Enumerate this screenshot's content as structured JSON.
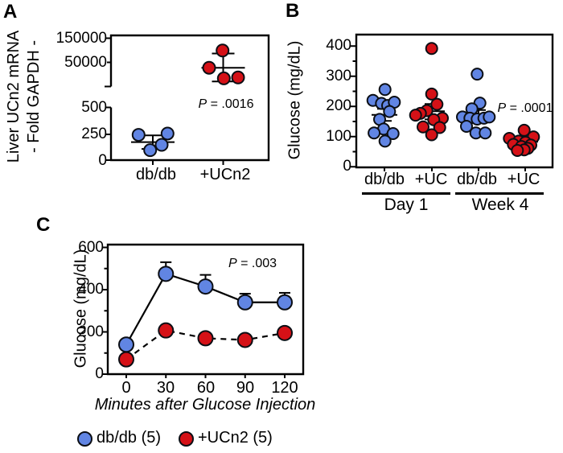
{
  "colors": {
    "blue": "#6185e3",
    "red": "#d51117",
    "stroke": "#0b0e14",
    "line": "#000000"
  },
  "panels": {
    "a": {
      "label": "A",
      "y_title_line1": "Liver UCn2 mRNA",
      "y_title_line2": "- Fold GAPDH -",
      "y_ticks": [
        "150000",
        "50000",
        "500",
        "250",
        "0"
      ],
      "x_labels": [
        "db/db",
        "+UCn2"
      ],
      "p_value": "P = .0016"
    },
    "b": {
      "label": "B",
      "y_title": "Glucose (mg/dL)",
      "y_ticks": [
        "400",
        "300",
        "200",
        "100",
        "0"
      ],
      "x_labels": [
        "db/db",
        "+UC",
        "db/db",
        "+UC"
      ],
      "group_labels": [
        "Day 1",
        "Week 4"
      ],
      "p_value": "P = .0001"
    },
    "c": {
      "label": "C",
      "y_title": "Glucose (mg/dL)",
      "y_ticks": [
        "600",
        "400",
        "200",
        "0"
      ],
      "x_ticks": [
        "0",
        "30",
        "60",
        "90",
        "120"
      ],
      "x_title": "Minutes after Glucose Injection",
      "p_value": "P = .003",
      "legend": [
        {
          "label": "db/db (5)",
          "color": "blue"
        },
        {
          "label": "+UCn2 (5)",
          "color": "red"
        }
      ]
    }
  },
  "chart_data": [
    {
      "panel": "A",
      "type": "scatter",
      "ylabel": "Liver UCn2 mRNA - Fold GAPDH -",
      "axis_note": "broken y-axis: linear 0-500 (ticks 0,250,500), upper segment ~16000-160000 (ticks 50000,150000)",
      "p_value": "P = .0016",
      "groups": [
        {
          "name": "db/db",
          "color": "blue",
          "scale": "lower",
          "values": [
            245,
            257,
            102,
            152
          ],
          "dx": [
            -17.7,
            18.3,
            -3.3,
            11
          ],
          "mean": 177,
          "sem_upper": 240,
          "sem_lower": 114
        },
        {
          "name": "+UCn2",
          "color": "red",
          "scale": "upper",
          "values": [
            80000,
            37000,
            23000,
            24000
          ],
          "dx": [
            -0.8,
            -17.5,
            0.8,
            18.5
          ],
          "mean": 37000,
          "sem_upper": 70000,
          "sem_lower": 20000
        }
      ]
    },
    {
      "panel": "B",
      "type": "scatter",
      "ylabel": "Glucose (mg/dL)",
      "ylim": [
        0,
        400
      ],
      "yticks": [
        0,
        100,
        200,
        300,
        400
      ],
      "p_value": "P = .0001",
      "groups": [
        {
          "name": "db/db Day 1",
          "color": "blue",
          "values": [
            256,
            220,
            210,
            203,
            214,
            183,
            157,
            125,
            112,
            110,
            85
          ],
          "dx": [
            0.7,
            -14.3,
            -3.7,
            4,
            12.3,
            6.3,
            -6,
            -1,
            -12.9,
            10.7,
            0.7
          ],
          "mean": 172,
          "sem_upper": 192,
          "sem_lower": 152
        },
        {
          "name": "+UC Day 1",
          "color": "red",
          "values": [
            392,
            241,
            207,
            186,
            177,
            171,
            161,
            156,
            132,
            130,
            106
          ],
          "dx": [
            -0.3,
            -0.3,
            6.3,
            -6.3,
            -14.3,
            -20.3,
            13,
            2.3,
            -11,
            9.7,
            -0.3
          ],
          "mean": 184,
          "sem_upper": 208,
          "sem_lower": 157
        },
        {
          "name": "db/db Week 4",
          "color": "blue",
          "values": [
            307,
            211,
            192,
            165,
            161,
            158,
            161,
            165,
            134,
            112,
            112
          ],
          "dx": [
            -1.7,
            1.7,
            -8.3,
            -20,
            -10.7,
            -1.7,
            6.7,
            13.3,
            -15,
            -3.3,
            8.3
          ],
          "mean": 168,
          "sem_upper": 188,
          "sem_lower": 150
        },
        {
          "name": "+UC Week 4",
          "color": "red",
          "values": [
            121,
            99,
            94,
            85,
            81,
            74,
            72,
            67,
            61,
            56,
            54
          ],
          "dx": [
            -1.3,
            10.3,
            -19.7,
            -8,
            0.3,
            -14.7,
            7,
            -4.7,
            3.3,
            -1.3,
            -9.7
          ],
          "mean": 83,
          "sem_upper": 91,
          "sem_lower": 75
        }
      ]
    },
    {
      "panel": "C",
      "type": "line",
      "xlabel": "Minutes after Glucose Injection",
      "ylabel": "Glucose (mg/dL)",
      "x": [
        0,
        30,
        60,
        90,
        120
      ],
      "ylim": [
        0,
        600
      ],
      "yticks": [
        0,
        200,
        400,
        600
      ],
      "p_value": "P = .003",
      "series": [
        {
          "name": "db/db (5)",
          "color": "blue",
          "style": "solid",
          "values": [
            140,
            475,
            415,
            340,
            340
          ],
          "err_upper": [
            null,
            530,
            470,
            381,
            385
          ]
        },
        {
          "name": "+UCn2 (5)",
          "color": "red",
          "style": "dashed",
          "values": [
            70,
            207,
            170,
            162,
            195
          ],
          "err_upper": [
            null,
            null,
            null,
            null,
            null
          ]
        }
      ]
    }
  ]
}
